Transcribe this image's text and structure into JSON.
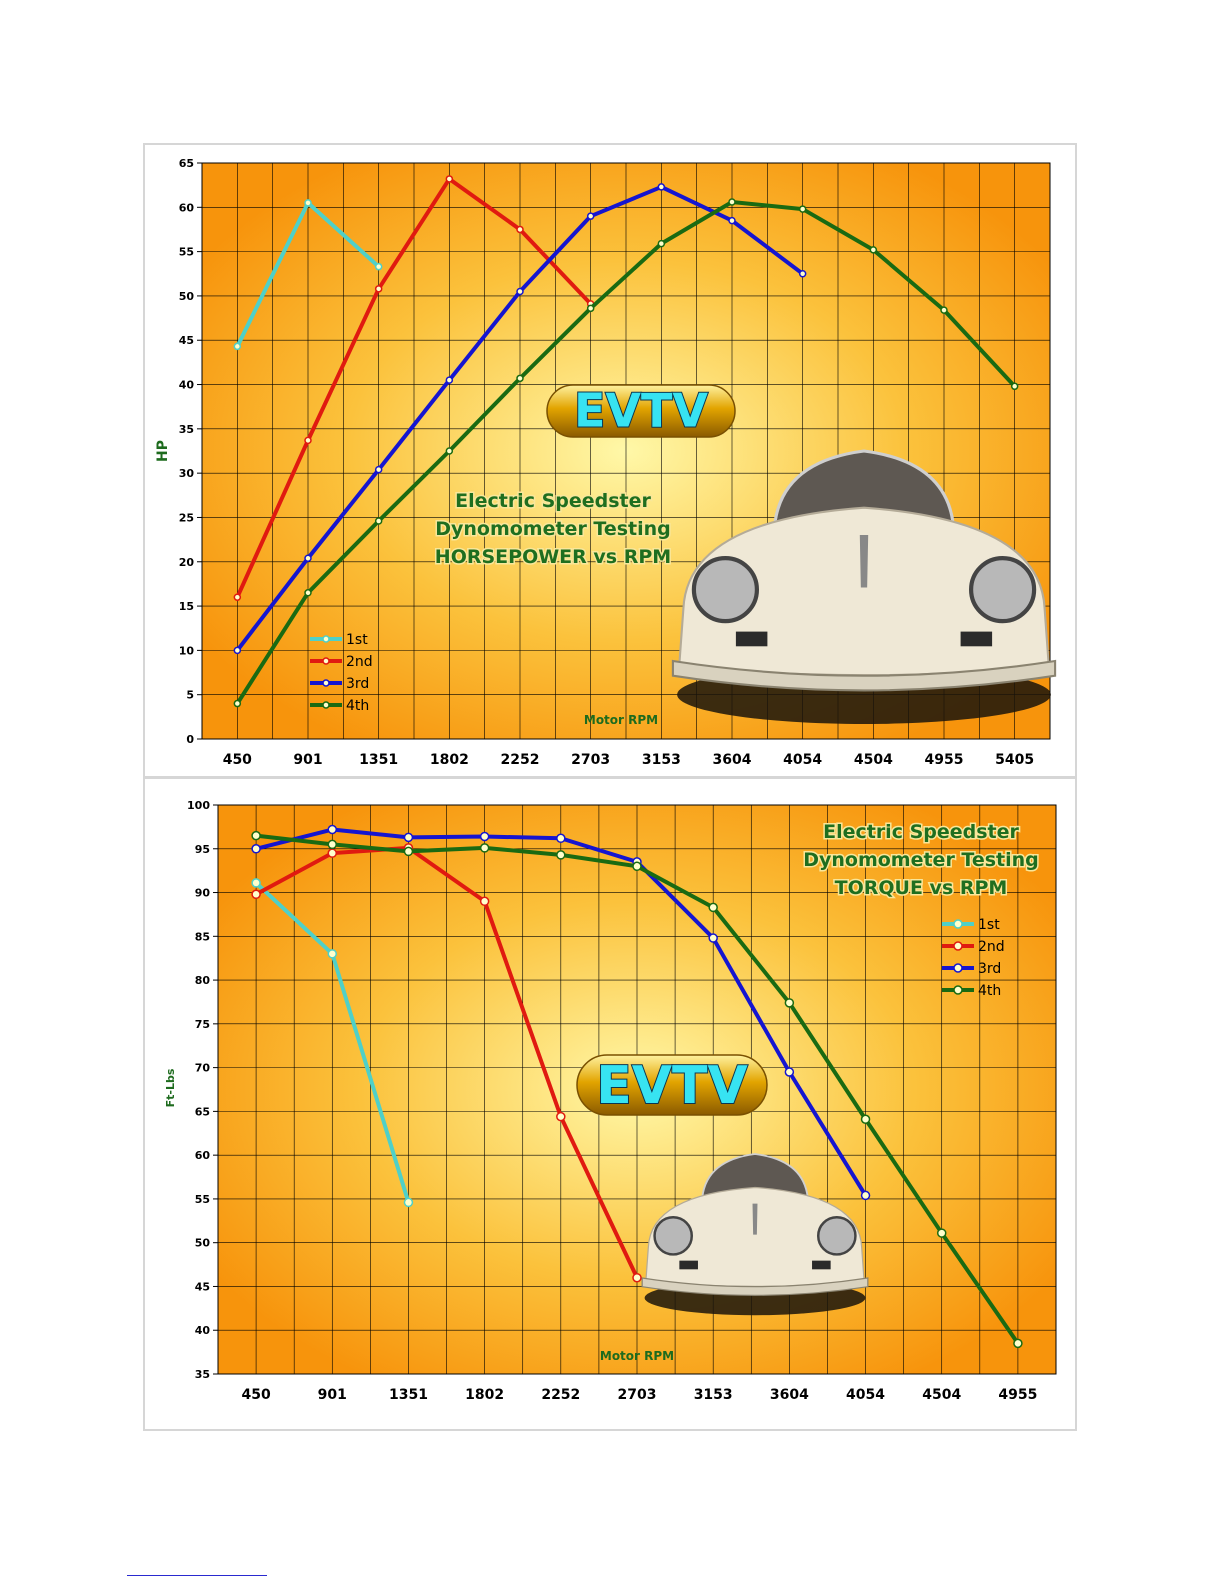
{
  "chart_data": [
    {
      "type": "line",
      "title": [
        "Electric Speedster",
        "Dynomometer Testing",
        "HORSEPOWER vs RPM"
      ],
      "xlabel": "Motor RPM",
      "ylabel": "HP",
      "categories": [
        "450",
        "901",
        "1351",
        "1802",
        "2252",
        "2703",
        "3153",
        "3604",
        "4054",
        "4504",
        "4955",
        "5405"
      ],
      "ylim": [
        0,
        65
      ],
      "yticks": [
        0,
        5,
        10,
        15,
        20,
        25,
        30,
        35,
        40,
        45,
        50,
        55,
        60,
        65
      ],
      "grid": true,
      "legend": "bottom-left",
      "logo": "EVTV",
      "series": [
        {
          "name": "1st",
          "color": "#4fd0c8",
          "values": [
            44.3,
            60.5,
            53.3,
            null,
            null,
            null,
            null,
            null,
            null,
            null,
            null,
            null
          ]
        },
        {
          "name": "2nd",
          "color": "#e01a10",
          "values": [
            16.0,
            33.7,
            50.8,
            63.2,
            57.5,
            49.1,
            null,
            null,
            null,
            null,
            null,
            null
          ]
        },
        {
          "name": "3rd",
          "color": "#1515d0",
          "values": [
            10.0,
            20.4,
            30.4,
            40.5,
            50.5,
            59.0,
            62.3,
            58.5,
            52.5,
            null,
            null,
            null
          ]
        },
        {
          "name": "4th",
          "color": "#1a6a12",
          "values": [
            4.0,
            16.5,
            24.6,
            32.5,
            40.7,
            48.6,
            55.9,
            60.6,
            59.8,
            55.2,
            48.4,
            39.8
          ]
        }
      ]
    },
    {
      "type": "line",
      "title": [
        "Electric Speedster",
        "Dynomometer Testing",
        "TORQUE vs RPM"
      ],
      "xlabel": "Motor RPM",
      "ylabel": "Ft-Lbs",
      "categories": [
        "450",
        "901",
        "1351",
        "1802",
        "2252",
        "2703",
        "3153",
        "3604",
        "4054",
        "4504",
        "4955"
      ],
      "ylim": [
        35,
        100
      ],
      "yticks": [
        35,
        40,
        45,
        50,
        55,
        60,
        65,
        70,
        75,
        80,
        85,
        90,
        95,
        100
      ],
      "grid": true,
      "legend": "right",
      "logo": "EVTV",
      "series": [
        {
          "name": "1st",
          "color": "#4fd0c8",
          "values": [
            91.1,
            83.0,
            54.6,
            null,
            null,
            null,
            null,
            null,
            null,
            null,
            null
          ]
        },
        {
          "name": "2nd",
          "color": "#e01a10",
          "values": [
            89.8,
            94.5,
            95.1,
            89.0,
            64.4,
            46.0,
            null,
            null,
            null,
            null,
            null
          ]
        },
        {
          "name": "3rd",
          "color": "#1515d0",
          "values": [
            95.0,
            97.2,
            96.3,
            96.4,
            96.2,
            93.5,
            84.8,
            69.5,
            55.4,
            null,
            null
          ]
        },
        {
          "name": "4th",
          "color": "#1a6a12",
          "values": [
            96.5,
            95.5,
            94.7,
            95.1,
            94.3,
            93.0,
            88.3,
            77.4,
            64.1,
            51.1,
            38.5
          ]
        }
      ]
    }
  ]
}
